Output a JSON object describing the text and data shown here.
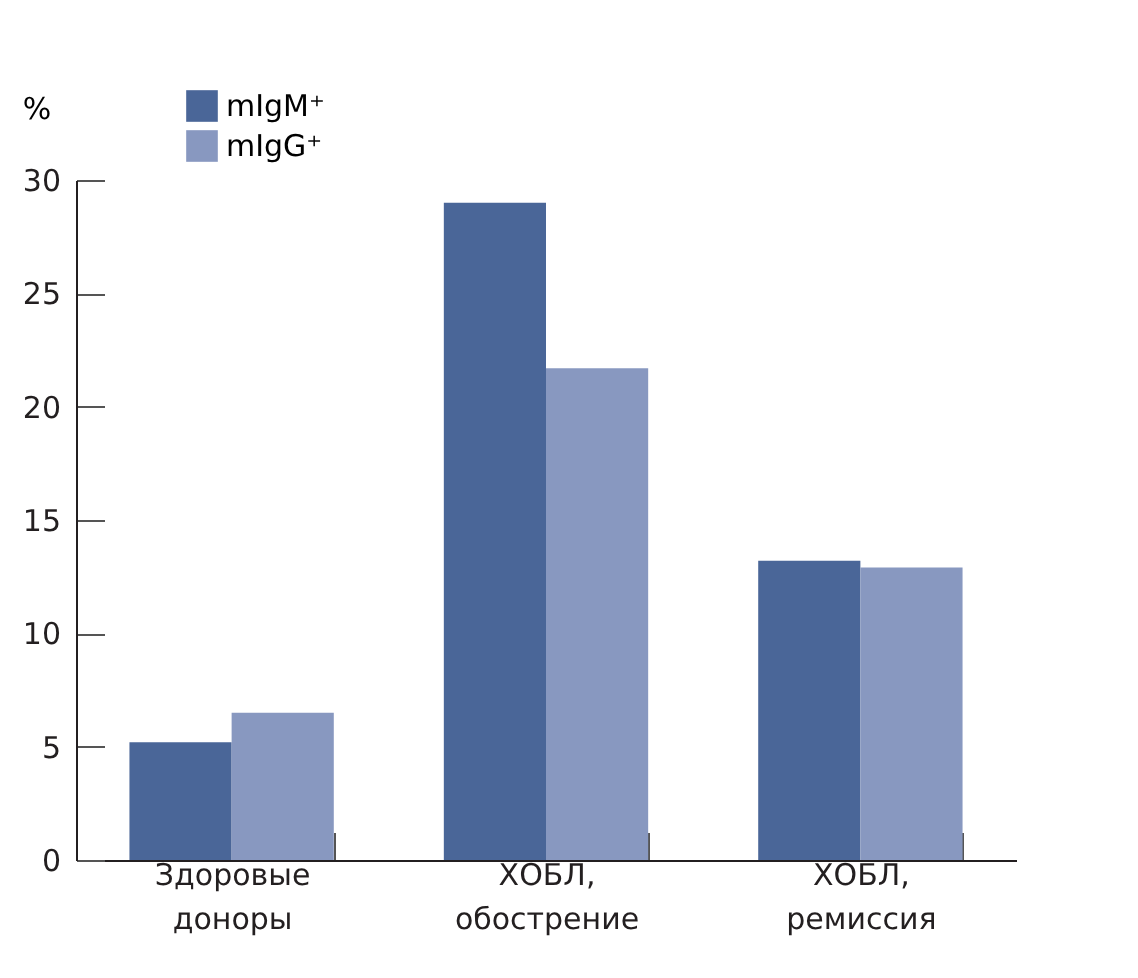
{
  "chart_data": {
    "type": "bar",
    "ylabel": "%",
    "categories": [
      "Здоровые доноры",
      "ХОБЛ, обострение",
      "ХОБЛ, ремиссия"
    ],
    "series": [
      {
        "name": "mIgM⁺",
        "color": "#4a6698",
        "values": [
          5.2,
          29.0,
          13.2
        ]
      },
      {
        "name": "mIgG⁺",
        "color": "#8898c0",
        "values": [
          6.5,
          21.7,
          12.9
        ]
      }
    ],
    "ylim": [
      0,
      30
    ],
    "yticks": [
      0,
      5,
      10,
      15,
      20,
      25,
      30
    ],
    "grid": false,
    "legend": "top left"
  }
}
